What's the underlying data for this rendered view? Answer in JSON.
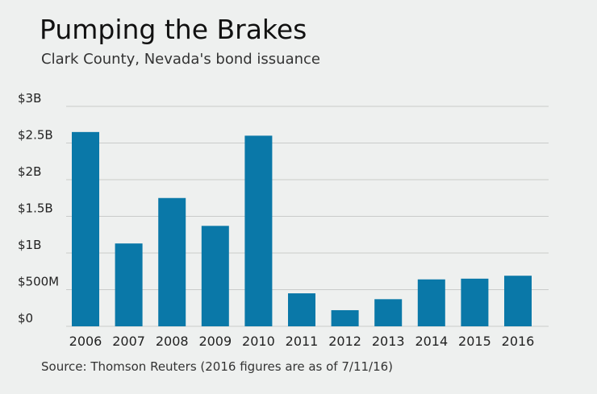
{
  "chart_data": {
    "type": "bar",
    "title": "Pumping the Brakes",
    "subtitle": "Clark County, Nevada's bond issuance",
    "source": "Source: Thomson Reuters (2016 figures are as of 7/11/16)",
    "categories": [
      "2006",
      "2007",
      "2008",
      "2009",
      "2010",
      "2011",
      "2012",
      "2013",
      "2014",
      "2015",
      "2016"
    ],
    "values": [
      2.65,
      1.13,
      1.75,
      1.37,
      2.6,
      0.45,
      0.22,
      0.37,
      0.64,
      0.65,
      0.69
    ],
    "value_unit": "billions of dollars",
    "ylim": [
      0,
      3
    ],
    "yticks": [
      0,
      0.5,
      1,
      1.5,
      2,
      2.5,
      3
    ],
    "ytick_labels": [
      "$0",
      "$500M",
      "$1B",
      "$1.5B",
      "$2B",
      "$2.5B",
      "$3B"
    ],
    "grid": true,
    "bar_color": "#0a78a8",
    "grid_color": "#c9cbca"
  }
}
